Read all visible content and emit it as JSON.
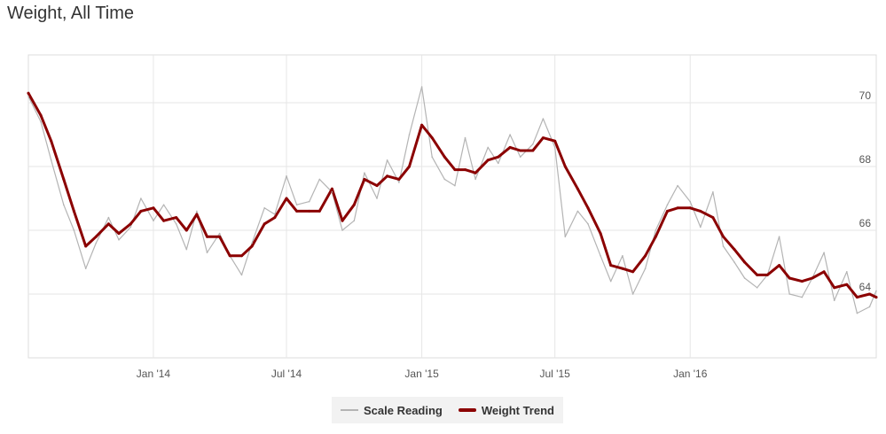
{
  "chart_data": {
    "type": "line",
    "title": "Weight, All Time",
    "x_ticks": [
      "Jan '14",
      "Jul '14",
      "Jan '15",
      "Jul '15",
      "Jan '16"
    ],
    "y_ticks": [
      64,
      66,
      68,
      70
    ],
    "ylim": [
      62,
      71.5
    ],
    "xlim": [
      "2013-07-15",
      "2016-09-10"
    ],
    "grid": true,
    "legend_position": "bottom-center",
    "series": [
      {
        "name": "Scale Reading",
        "color": "#b4b4b4",
        "points": [
          [
            "2013-07-15",
            70.2
          ],
          [
            "2013-08-01",
            69.4
          ],
          [
            "2013-08-15",
            68.2
          ],
          [
            "2013-09-01",
            66.8
          ],
          [
            "2013-09-15",
            66.0
          ],
          [
            "2013-10-01",
            64.8
          ],
          [
            "2013-10-15",
            65.6
          ],
          [
            "2013-11-01",
            66.4
          ],
          [
            "2013-11-15",
            65.7
          ],
          [
            "2013-12-01",
            66.1
          ],
          [
            "2013-12-15",
            67.0
          ],
          [
            "2014-01-01",
            66.3
          ],
          [
            "2014-01-15",
            66.8
          ],
          [
            "2014-02-01",
            66.2
          ],
          [
            "2014-02-15",
            65.4
          ],
          [
            "2014-03-01",
            66.6
          ],
          [
            "2014-03-15",
            65.3
          ],
          [
            "2014-04-01",
            65.9
          ],
          [
            "2014-04-15",
            65.2
          ],
          [
            "2014-05-01",
            64.6
          ],
          [
            "2014-05-15",
            65.6
          ],
          [
            "2014-06-01",
            66.7
          ],
          [
            "2014-06-15",
            66.5
          ],
          [
            "2014-07-01",
            67.7
          ],
          [
            "2014-07-15",
            66.8
          ],
          [
            "2014-08-01",
            66.9
          ],
          [
            "2014-08-15",
            67.6
          ],
          [
            "2014-09-01",
            67.2
          ],
          [
            "2014-09-15",
            66.0
          ],
          [
            "2014-10-01",
            66.3
          ],
          [
            "2014-10-15",
            67.8
          ],
          [
            "2014-11-01",
            67.0
          ],
          [
            "2014-11-15",
            68.2
          ],
          [
            "2014-12-01",
            67.5
          ],
          [
            "2014-12-15",
            69.0
          ],
          [
            "2015-01-01",
            70.5
          ],
          [
            "2015-01-15",
            68.3
          ],
          [
            "2015-02-01",
            67.6
          ],
          [
            "2015-02-15",
            67.4
          ],
          [
            "2015-03-01",
            68.9
          ],
          [
            "2015-03-15",
            67.6
          ],
          [
            "2015-04-01",
            68.6
          ],
          [
            "2015-04-15",
            68.1
          ],
          [
            "2015-05-01",
            69.0
          ],
          [
            "2015-05-15",
            68.3
          ],
          [
            "2015-06-01",
            68.7
          ],
          [
            "2015-06-15",
            69.5
          ],
          [
            "2015-07-01",
            68.6
          ],
          [
            "2015-07-15",
            65.8
          ],
          [
            "2015-08-01",
            66.6
          ],
          [
            "2015-08-15",
            66.2
          ],
          [
            "2015-09-01",
            65.2
          ],
          [
            "2015-09-15",
            64.4
          ],
          [
            "2015-10-01",
            65.2
          ],
          [
            "2015-10-15",
            64.0
          ],
          [
            "2015-11-01",
            64.8
          ],
          [
            "2015-11-15",
            66.0
          ],
          [
            "2015-12-01",
            66.8
          ],
          [
            "2015-12-15",
            67.4
          ],
          [
            "2016-01-01",
            66.9
          ],
          [
            "2016-01-15",
            66.1
          ],
          [
            "2016-02-01",
            67.2
          ],
          [
            "2016-02-15",
            65.5
          ],
          [
            "2016-03-01",
            65.0
          ],
          [
            "2016-03-15",
            64.5
          ],
          [
            "2016-04-01",
            64.2
          ],
          [
            "2016-04-15",
            64.6
          ],
          [
            "2016-05-01",
            65.8
          ],
          [
            "2016-05-15",
            64.0
          ],
          [
            "2016-06-01",
            63.9
          ],
          [
            "2016-06-15",
            64.5
          ],
          [
            "2016-07-01",
            65.3
          ],
          [
            "2016-07-15",
            63.8
          ],
          [
            "2016-08-01",
            64.7
          ],
          [
            "2016-08-15",
            63.4
          ],
          [
            "2016-09-01",
            63.6
          ],
          [
            "2016-09-10",
            64.1
          ]
        ]
      },
      {
        "name": "Weight Trend",
        "color": "#8b0000",
        "points": [
          [
            "2013-07-15",
            70.3
          ],
          [
            "2013-08-01",
            69.6
          ],
          [
            "2013-08-15",
            68.8
          ],
          [
            "2013-09-01",
            67.6
          ],
          [
            "2013-09-15",
            66.6
          ],
          [
            "2013-10-01",
            65.5
          ],
          [
            "2013-10-15",
            65.8
          ],
          [
            "2013-11-01",
            66.2
          ],
          [
            "2013-11-15",
            65.9
          ],
          [
            "2013-12-01",
            66.2
          ],
          [
            "2013-12-15",
            66.6
          ],
          [
            "2014-01-01",
            66.7
          ],
          [
            "2014-01-15",
            66.3
          ],
          [
            "2014-02-01",
            66.4
          ],
          [
            "2014-02-15",
            66.0
          ],
          [
            "2014-03-01",
            66.5
          ],
          [
            "2014-03-15",
            65.8
          ],
          [
            "2014-04-01",
            65.8
          ],
          [
            "2014-04-15",
            65.2
          ],
          [
            "2014-05-01",
            65.2
          ],
          [
            "2014-05-15",
            65.5
          ],
          [
            "2014-06-01",
            66.2
          ],
          [
            "2014-06-15",
            66.4
          ],
          [
            "2014-07-01",
            67.0
          ],
          [
            "2014-07-15",
            66.6
          ],
          [
            "2014-08-01",
            66.6
          ],
          [
            "2014-08-15",
            66.6
          ],
          [
            "2014-09-01",
            67.3
          ],
          [
            "2014-09-15",
            66.3
          ],
          [
            "2014-10-01",
            66.8
          ],
          [
            "2014-10-15",
            67.6
          ],
          [
            "2014-11-01",
            67.4
          ],
          [
            "2014-11-15",
            67.7
          ],
          [
            "2014-12-01",
            67.6
          ],
          [
            "2014-12-15",
            68.0
          ],
          [
            "2015-01-01",
            69.3
          ],
          [
            "2015-01-15",
            68.9
          ],
          [
            "2015-02-01",
            68.3
          ],
          [
            "2015-02-15",
            67.9
          ],
          [
            "2015-03-01",
            67.9
          ],
          [
            "2015-03-15",
            67.8
          ],
          [
            "2015-04-01",
            68.2
          ],
          [
            "2015-04-15",
            68.3
          ],
          [
            "2015-05-01",
            68.6
          ],
          [
            "2015-05-15",
            68.5
          ],
          [
            "2015-06-01",
            68.5
          ],
          [
            "2015-06-15",
            68.9
          ],
          [
            "2015-07-01",
            68.8
          ],
          [
            "2015-07-15",
            68.0
          ],
          [
            "2015-08-01",
            67.3
          ],
          [
            "2015-08-15",
            66.7
          ],
          [
            "2015-09-01",
            65.9
          ],
          [
            "2015-09-15",
            64.9
          ],
          [
            "2015-10-01",
            64.8
          ],
          [
            "2015-10-15",
            64.7
          ],
          [
            "2015-11-01",
            65.2
          ],
          [
            "2015-11-15",
            65.8
          ],
          [
            "2015-12-01",
            66.6
          ],
          [
            "2015-12-15",
            66.7
          ],
          [
            "2016-01-01",
            66.7
          ],
          [
            "2016-01-15",
            66.6
          ],
          [
            "2016-02-01",
            66.4
          ],
          [
            "2016-02-15",
            65.8
          ],
          [
            "2016-03-01",
            65.4
          ],
          [
            "2016-03-15",
            65.0
          ],
          [
            "2016-04-01",
            64.6
          ],
          [
            "2016-04-15",
            64.6
          ],
          [
            "2016-05-01",
            64.9
          ],
          [
            "2016-05-15",
            64.5
          ],
          [
            "2016-06-01",
            64.4
          ],
          [
            "2016-06-15",
            64.5
          ],
          [
            "2016-07-01",
            64.7
          ],
          [
            "2016-07-15",
            64.2
          ],
          [
            "2016-08-01",
            64.3
          ],
          [
            "2016-08-15",
            63.9
          ],
          [
            "2016-09-01",
            64.0
          ],
          [
            "2016-09-10",
            63.9
          ]
        ]
      }
    ]
  }
}
